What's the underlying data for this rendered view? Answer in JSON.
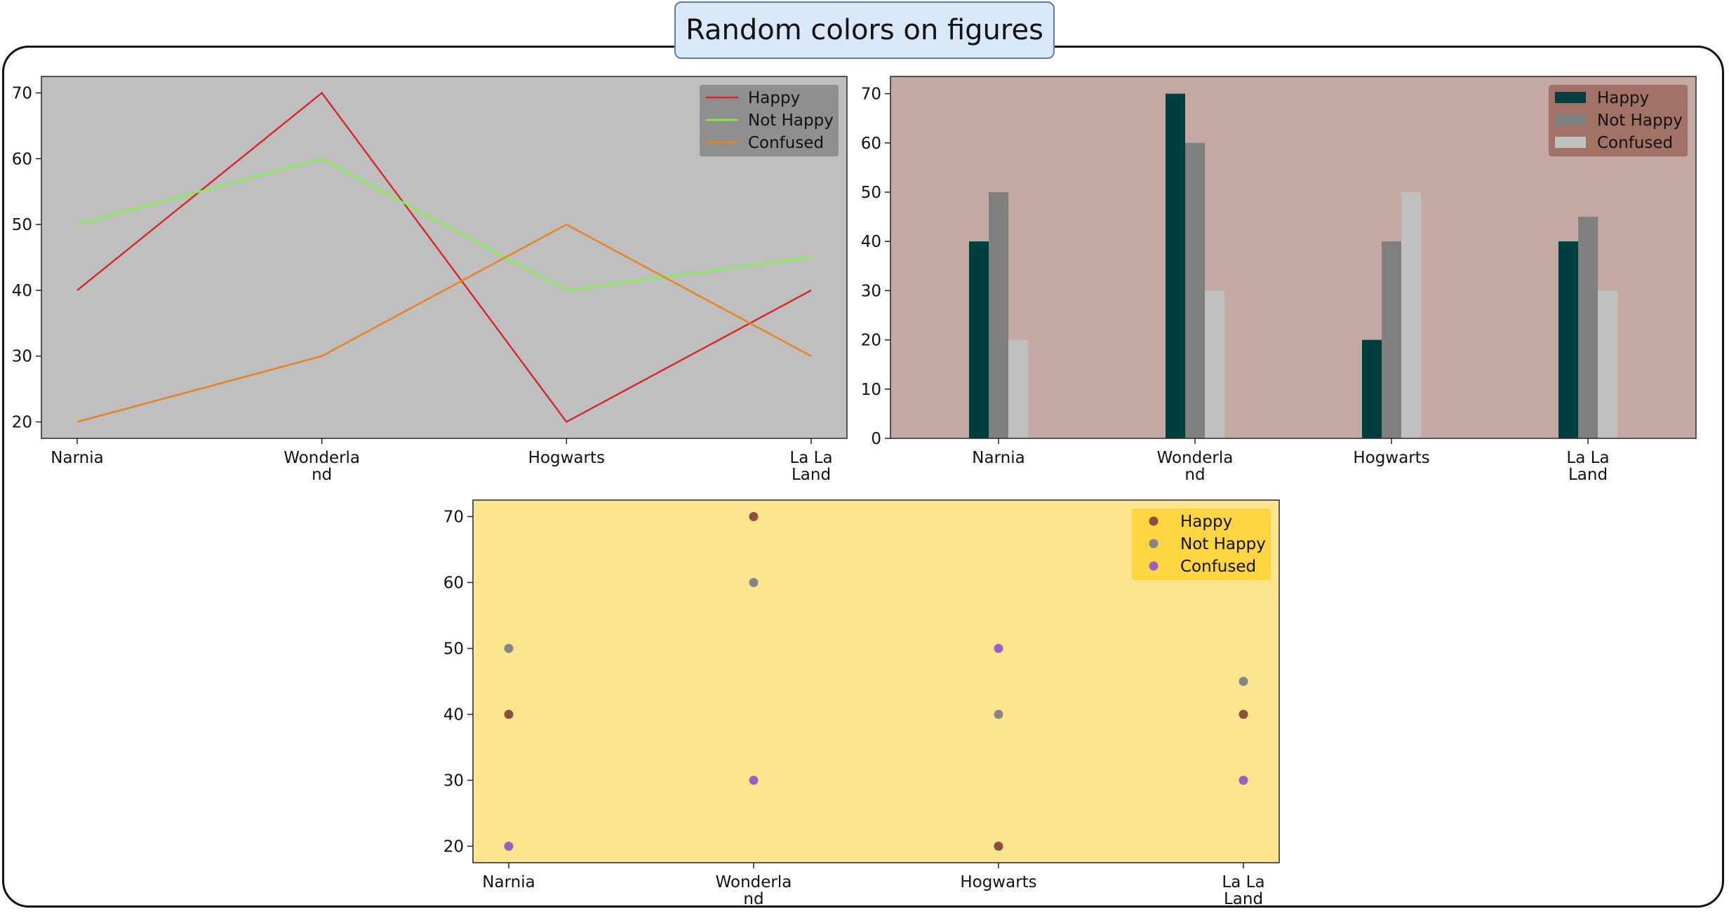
{
  "figure_title": "Random colors on figures",
  "chart_data": [
    {
      "type": "line",
      "categories": [
        "Narnia",
        "Wonderla\nnd",
        "Hogwarts",
        "La La\nLand"
      ],
      "series": [
        {
          "name": "Happy",
          "values": [
            40,
            70,
            20,
            40
          ],
          "color": "#d62728"
        },
        {
          "name": "Not Happy",
          "values": [
            50,
            60,
            40,
            45
          ],
          "color": "#7ef542"
        },
        {
          "name": "Confused",
          "values": [
            20,
            30,
            50,
            30
          ],
          "color": "#e8821c"
        }
      ],
      "yticks": [
        20,
        30,
        40,
        50,
        60,
        70
      ],
      "ylim": [
        17.5,
        72.5
      ],
      "background": "#bfbfbf",
      "legend": {
        "placement": "top-right",
        "background": "#8a8a8a"
      }
    },
    {
      "type": "bar",
      "categories": [
        "Narnia",
        "Wonderla\nnd",
        "Hogwarts",
        "La La\nLand"
      ],
      "series": [
        {
          "name": "Happy",
          "values": [
            40,
            70,
            20,
            40
          ],
          "color": "#003f3f"
        },
        {
          "name": "Not Happy",
          "values": [
            50,
            60,
            40,
            45
          ],
          "color": "#808080"
        },
        {
          "name": "Confused",
          "values": [
            20,
            30,
            50,
            30
          ],
          "color": "#c0c0c0"
        }
      ],
      "yticks": [
        0,
        10,
        20,
        30,
        40,
        50,
        60,
        70
      ],
      "ylim": [
        0,
        73.5
      ],
      "background": "#c4a8a4",
      "legend": {
        "placement": "top-right",
        "background": "#9e6b61"
      }
    },
    {
      "type": "scatter",
      "categories": [
        "Narnia",
        "Wonderla\nnd",
        "Hogwarts",
        "La La\nLand"
      ],
      "series": [
        {
          "name": "Happy",
          "values": [
            40,
            70,
            20,
            40
          ],
          "color": "#8c4f3e"
        },
        {
          "name": "Not Happy",
          "values": [
            50,
            60,
            40,
            45
          ],
          "color": "#858585"
        },
        {
          "name": "Confused",
          "values": [
            20,
            30,
            50,
            30
          ],
          "color": "#9b5fc0"
        }
      ],
      "yticks": [
        20,
        30,
        40,
        50,
        60,
        70
      ],
      "ylim": [
        17.5,
        72.5
      ],
      "background": "#fde48f",
      "legend": {
        "placement": "top-right",
        "background": "#fdd23a"
      }
    }
  ]
}
